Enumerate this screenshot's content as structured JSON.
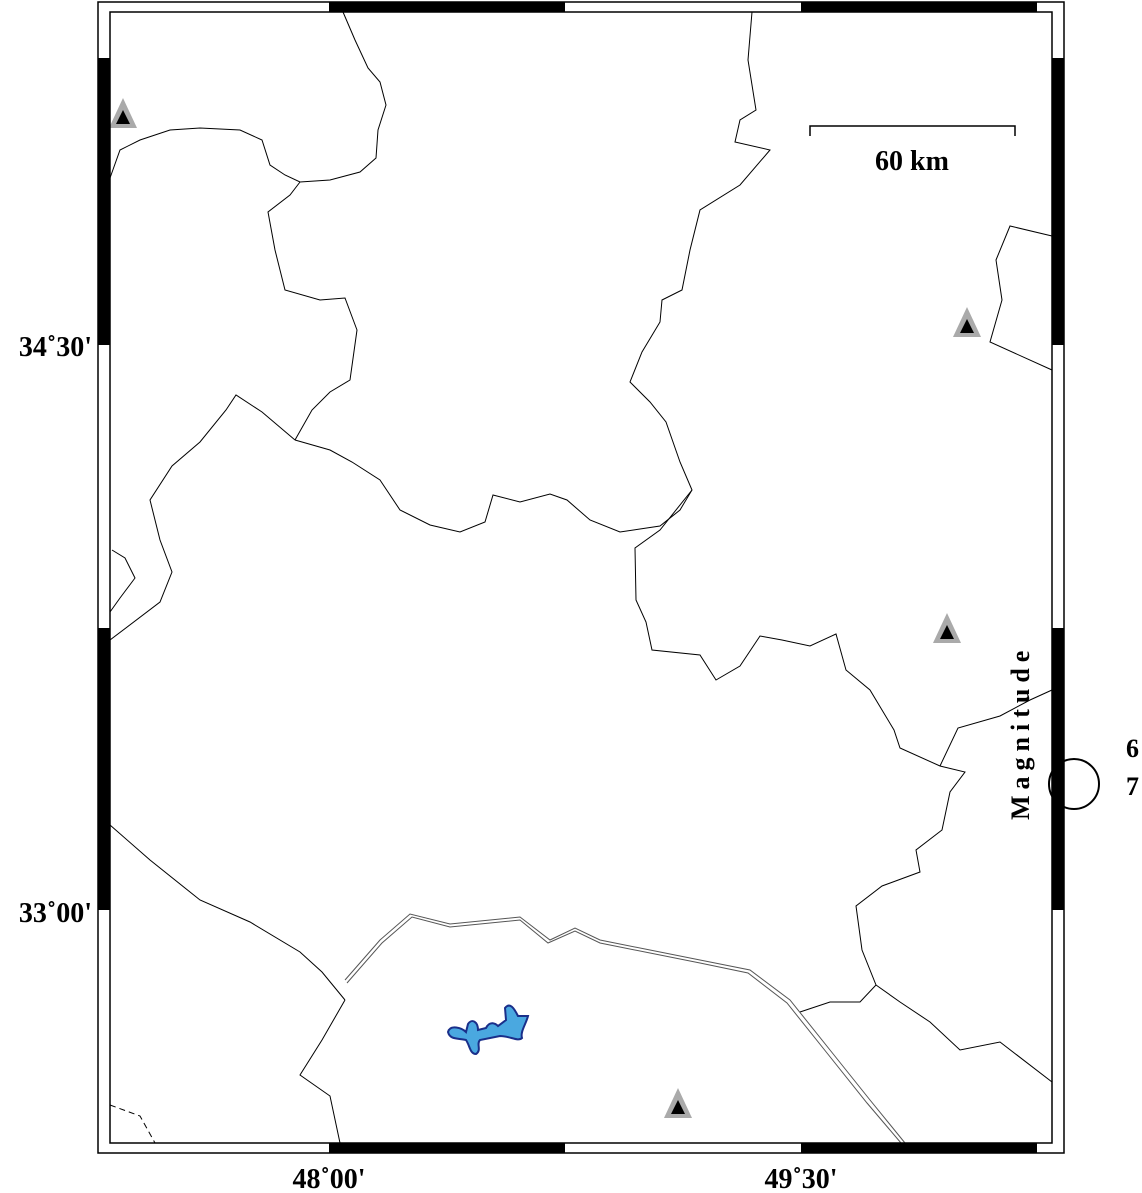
{
  "map": {
    "axes": {
      "x_ticks": [
        "48˚00'",
        "49˚30'"
      ],
      "y_ticks": [
        "34˚30'",
        "33˚00'"
      ]
    },
    "scale_bar": {
      "label": "60 km"
    },
    "legend": {
      "title": "Magnitude",
      "entries": [
        "6",
        "7"
      ]
    },
    "stations": {
      "count": 4,
      "symbol": "triangle",
      "fill": "#000000",
      "halo": "#aaaaaa"
    },
    "colors": {
      "lake": "#4aa8e0",
      "lake_outline": "#1a2f8a",
      "border": "#000000",
      "frame": "#000000"
    }
  }
}
